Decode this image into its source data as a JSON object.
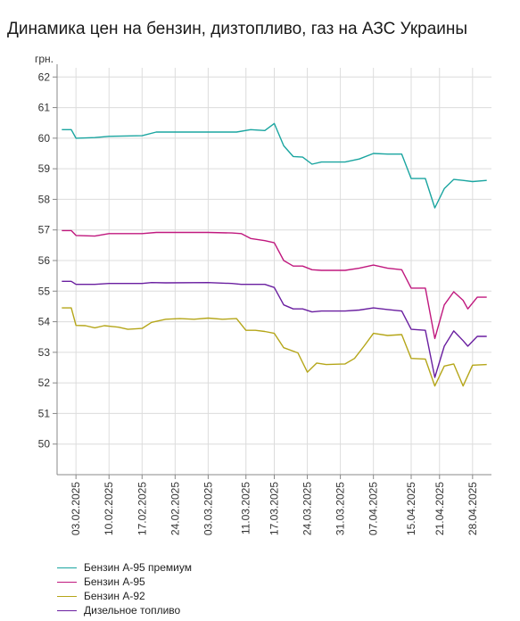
{
  "chart_data": {
    "type": "line",
    "title": "Динамика цен на бензин, дизтопливо, газ на АЗС Украины",
    "ylabel": "грн.",
    "xlabel": "",
    "ylim": [
      49,
      62.3
    ],
    "yticks": [
      50,
      51,
      52,
      53,
      54,
      55,
      56,
      57,
      58,
      59,
      60,
      61,
      62
    ],
    "xlim": [
      "2025-01-30",
      "2025-05-02"
    ],
    "xtick_labels": [
      "03.02.2025",
      "10.02.2025",
      "17.02.2025",
      "24.02.2025",
      "03.03.2025",
      "11.03.2025",
      "17.03.2025",
      "24.03.2025",
      "31.03.2025",
      "07.04.2025",
      "15.04.2025",
      "21.04.2025",
      "28.04.2025"
    ],
    "xtick_dates": [
      "2025-02-03",
      "2025-02-10",
      "2025-02-17",
      "2025-02-24",
      "2025-03-03",
      "2025-03-11",
      "2025-03-17",
      "2025-03-24",
      "2025-03-31",
      "2025-04-07",
      "2025-04-15",
      "2025-04-21",
      "2025-04-28"
    ],
    "grid": true,
    "legend_position": "bottom-left",
    "series": [
      {
        "name": "Бензин А-95 премиум",
        "color": "#1aa5a0",
        "points": [
          [
            "2025-01-31",
            60.28
          ],
          [
            "2025-02-02",
            60.28
          ],
          [
            "2025-02-03",
            60.0
          ],
          [
            "2025-02-07",
            60.02
          ],
          [
            "2025-02-10",
            60.06
          ],
          [
            "2025-02-17",
            60.08
          ],
          [
            "2025-02-20",
            60.2
          ],
          [
            "2025-02-24",
            60.2
          ],
          [
            "2025-03-03",
            60.2
          ],
          [
            "2025-03-09",
            60.2
          ],
          [
            "2025-03-12",
            60.28
          ],
          [
            "2025-03-15",
            60.25
          ],
          [
            "2025-03-17",
            60.48
          ],
          [
            "2025-03-19",
            59.75
          ],
          [
            "2025-03-21",
            59.4
          ],
          [
            "2025-03-23",
            59.38
          ],
          [
            "2025-03-25",
            59.15
          ],
          [
            "2025-03-27",
            59.22
          ],
          [
            "2025-04-01",
            59.22
          ],
          [
            "2025-04-04",
            59.32
          ],
          [
            "2025-04-07",
            59.5
          ],
          [
            "2025-04-10",
            59.48
          ],
          [
            "2025-04-13",
            59.48
          ],
          [
            "2025-04-15",
            58.68
          ],
          [
            "2025-04-18",
            58.68
          ],
          [
            "2025-04-20",
            57.72
          ],
          [
            "2025-04-22",
            58.35
          ],
          [
            "2025-04-24",
            58.65
          ],
          [
            "2025-04-26",
            58.62
          ],
          [
            "2025-04-28",
            58.58
          ],
          [
            "2025-05-01",
            58.62
          ]
        ]
      },
      {
        "name": "Бензин А-95",
        "color": "#c0187e",
        "points": [
          [
            "2025-01-31",
            56.98
          ],
          [
            "2025-02-02",
            56.98
          ],
          [
            "2025-02-03",
            56.82
          ],
          [
            "2025-02-07",
            56.8
          ],
          [
            "2025-02-10",
            56.88
          ],
          [
            "2025-02-17",
            56.88
          ],
          [
            "2025-02-20",
            56.92
          ],
          [
            "2025-03-03",
            56.92
          ],
          [
            "2025-03-08",
            56.9
          ],
          [
            "2025-03-10",
            56.88
          ],
          [
            "2025-03-12",
            56.72
          ],
          [
            "2025-03-15",
            56.65
          ],
          [
            "2025-03-17",
            56.58
          ],
          [
            "2025-03-19",
            56.0
          ],
          [
            "2025-03-21",
            55.82
          ],
          [
            "2025-03-23",
            55.82
          ],
          [
            "2025-03-25",
            55.7
          ],
          [
            "2025-03-27",
            55.68
          ],
          [
            "2025-04-01",
            55.68
          ],
          [
            "2025-04-04",
            55.75
          ],
          [
            "2025-04-07",
            55.85
          ],
          [
            "2025-04-10",
            55.75
          ],
          [
            "2025-04-13",
            55.7
          ],
          [
            "2025-04-15",
            55.1
          ],
          [
            "2025-04-18",
            55.1
          ],
          [
            "2025-04-20",
            53.45
          ],
          [
            "2025-04-22",
            54.55
          ],
          [
            "2025-04-24",
            54.98
          ],
          [
            "2025-04-26",
            54.7
          ],
          [
            "2025-04-27",
            54.42
          ],
          [
            "2025-04-29",
            54.8
          ],
          [
            "2025-05-01",
            54.8
          ]
        ]
      },
      {
        "name": "Бензин А-92",
        "color": "#b5a619",
        "points": [
          [
            "2025-01-31",
            54.45
          ],
          [
            "2025-02-02",
            54.45
          ],
          [
            "2025-02-03",
            53.88
          ],
          [
            "2025-02-05",
            53.87
          ],
          [
            "2025-02-07",
            53.8
          ],
          [
            "2025-02-09",
            53.87
          ],
          [
            "2025-02-12",
            53.82
          ],
          [
            "2025-02-14",
            53.75
          ],
          [
            "2025-02-17",
            53.78
          ],
          [
            "2025-02-19",
            53.98
          ],
          [
            "2025-02-22",
            54.08
          ],
          [
            "2025-02-25",
            54.1
          ],
          [
            "2025-02-28",
            54.08
          ],
          [
            "2025-03-03",
            54.12
          ],
          [
            "2025-03-06",
            54.08
          ],
          [
            "2025-03-09",
            54.1
          ],
          [
            "2025-03-11",
            53.72
          ],
          [
            "2025-03-13",
            53.72
          ],
          [
            "2025-03-15",
            53.68
          ],
          [
            "2025-03-17",
            53.62
          ],
          [
            "2025-03-19",
            53.15
          ],
          [
            "2025-03-22",
            52.98
          ],
          [
            "2025-03-24",
            52.35
          ],
          [
            "2025-03-26",
            52.65
          ],
          [
            "2025-03-28",
            52.6
          ],
          [
            "2025-04-01",
            52.62
          ],
          [
            "2025-04-03",
            52.8
          ],
          [
            "2025-04-05",
            53.2
          ],
          [
            "2025-04-07",
            53.62
          ],
          [
            "2025-04-10",
            53.55
          ],
          [
            "2025-04-13",
            53.58
          ],
          [
            "2025-04-15",
            52.8
          ],
          [
            "2025-04-18",
            52.78
          ],
          [
            "2025-04-20",
            51.9
          ],
          [
            "2025-04-22",
            52.55
          ],
          [
            "2025-04-24",
            52.62
          ],
          [
            "2025-04-26",
            51.9
          ],
          [
            "2025-04-28",
            52.58
          ],
          [
            "2025-05-01",
            52.6
          ]
        ]
      },
      {
        "name": "Дизельное топливо",
        "color": "#6a1fa0",
        "points": [
          [
            "2025-01-31",
            55.32
          ],
          [
            "2025-02-02",
            55.32
          ],
          [
            "2025-02-03",
            55.22
          ],
          [
            "2025-02-07",
            55.22
          ],
          [
            "2025-02-10",
            55.25
          ],
          [
            "2025-02-17",
            55.25
          ],
          [
            "2025-02-19",
            55.28
          ],
          [
            "2025-02-22",
            55.27
          ],
          [
            "2025-03-03",
            55.28
          ],
          [
            "2025-03-08",
            55.25
          ],
          [
            "2025-03-10",
            55.22
          ],
          [
            "2025-03-15",
            55.22
          ],
          [
            "2025-03-17",
            55.12
          ],
          [
            "2025-03-19",
            54.55
          ],
          [
            "2025-03-21",
            54.42
          ],
          [
            "2025-03-23",
            54.42
          ],
          [
            "2025-03-25",
            54.32
          ],
          [
            "2025-03-27",
            54.35
          ],
          [
            "2025-04-01",
            54.35
          ],
          [
            "2025-04-04",
            54.38
          ],
          [
            "2025-04-07",
            54.45
          ],
          [
            "2025-04-10",
            54.4
          ],
          [
            "2025-04-13",
            54.35
          ],
          [
            "2025-04-15",
            53.75
          ],
          [
            "2025-04-18",
            53.72
          ],
          [
            "2025-04-20",
            52.18
          ],
          [
            "2025-04-22",
            53.2
          ],
          [
            "2025-04-24",
            53.7
          ],
          [
            "2025-04-26",
            53.38
          ],
          [
            "2025-04-27",
            53.2
          ],
          [
            "2025-04-29",
            53.52
          ],
          [
            "2025-05-01",
            53.52
          ]
        ]
      }
    ]
  }
}
